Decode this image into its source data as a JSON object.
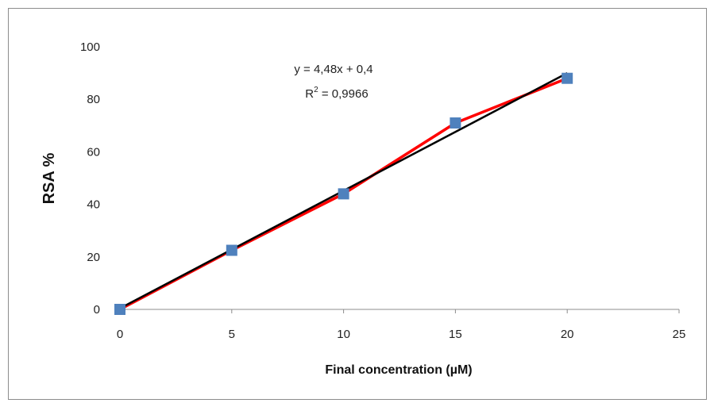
{
  "chart_data": {
    "type": "scatter",
    "x": [
      0,
      5,
      10,
      15,
      20
    ],
    "series": [
      {
        "values": [
          0,
          22.5,
          44,
          71,
          88
        ],
        "marker": "square",
        "marker_color": "#4f81bd",
        "line_color": "#ff0000"
      }
    ],
    "trendline": {
      "slope": 4.48,
      "intercept": 0.4,
      "color": "#000000",
      "x_range": [
        0,
        20
      ]
    },
    "equation": "y = 4,48x + 0,4",
    "r2_prefix": "R",
    "r2_sup": "2",
    "r2_value": " = 0,9966",
    "xlabel": "Final concentration  (µM)",
    "ylabel": "RSA %",
    "xlim": [
      0,
      25
    ],
    "ylim": [
      0,
      100
    ],
    "xticks": [
      0,
      5,
      10,
      15,
      20,
      25
    ],
    "yticks": [
      0,
      20,
      40,
      60,
      80,
      100
    ],
    "grid": false
  }
}
